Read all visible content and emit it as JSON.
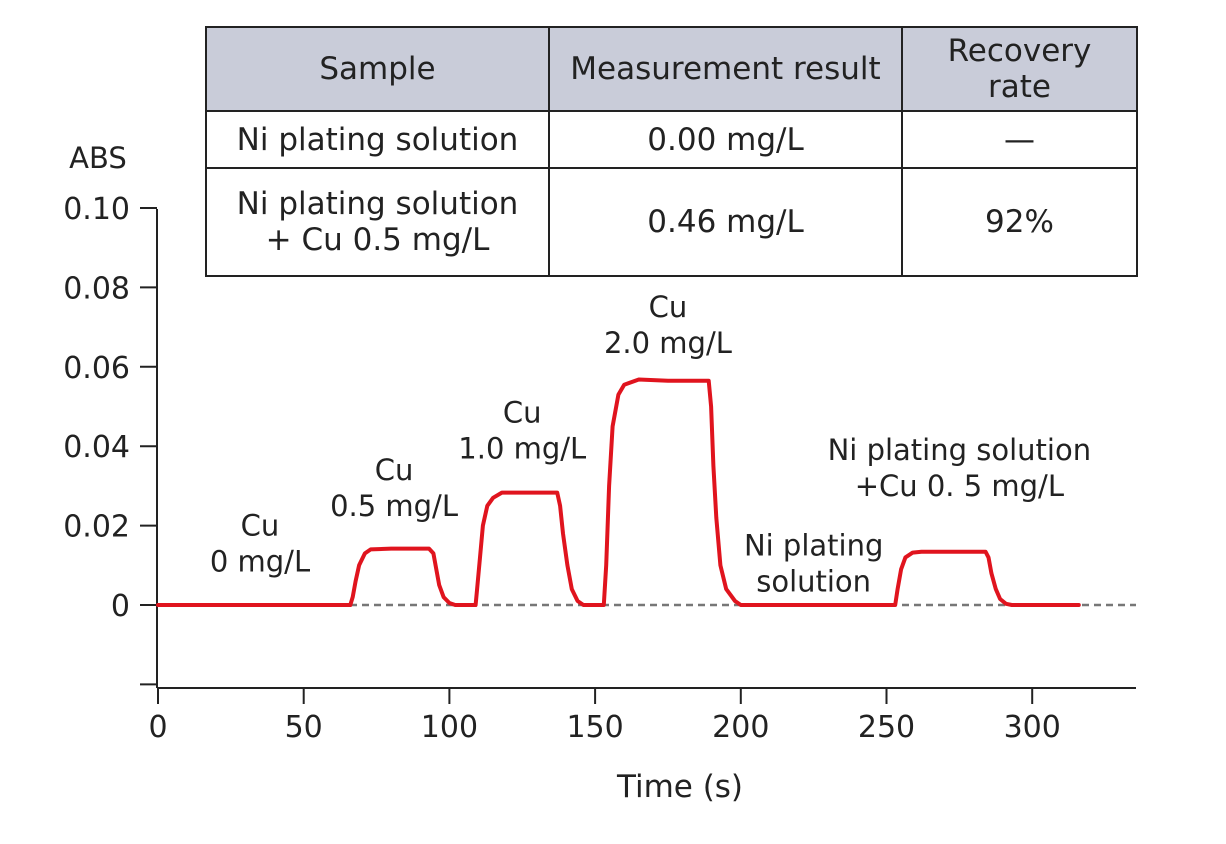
{
  "chart_data": {
    "type": "line",
    "ylabel": "ABS",
    "xlabel": "Time (s)",
    "xlim": [
      0,
      335
    ],
    "ylim": [
      -0.02,
      0.1
    ],
    "yticks": [
      0.1,
      0.08,
      0.06,
      0.04,
      0.02,
      0
    ],
    "ytick_labels": [
      "0.10",
      "0.08",
      "0.06",
      "0.04",
      "0.02",
      "0"
    ],
    "xticks": [
      0,
      50,
      100,
      150,
      200,
      250,
      300
    ],
    "xtick_labels": [
      "0",
      "50",
      "100",
      "150",
      "200",
      "250",
      "300"
    ],
    "baseline": 0,
    "series_color": "#e0141e",
    "baseline_color": "#777777",
    "series": [
      {
        "x": [
          0,
          66,
          66.8,
          67.8,
          69,
          71,
          73,
          80,
          93,
          94.5,
          95.5,
          96.5,
          98,
          100,
          102,
          109,
          109.5,
          110.5,
          111.5,
          113,
          115,
          118,
          128,
          137,
          138,
          139,
          140.5,
          142,
          144,
          146,
          153,
          153.8,
          154.8,
          156,
          158,
          160,
          165,
          175,
          189,
          189.8,
          190.6,
          191.6,
          193,
          195,
          198,
          200,
          253,
          253.8,
          255,
          256.5,
          259,
          262,
          270,
          284,
          285,
          286,
          287.5,
          289,
          291,
          293,
          316
        ],
        "y": [
          0,
          0,
          0.002,
          0.006,
          0.01,
          0.013,
          0.014,
          0.0142,
          0.0142,
          0.013,
          0.009,
          0.005,
          0.002,
          0.0005,
          0,
          0,
          0.004,
          0.012,
          0.02,
          0.025,
          0.027,
          0.0283,
          0.0283,
          0.0283,
          0.025,
          0.018,
          0.01,
          0.004,
          0.001,
          0,
          0,
          0.01,
          0.03,
          0.045,
          0.053,
          0.0555,
          0.0568,
          0.0565,
          0.0565,
          0.05,
          0.035,
          0.022,
          0.01,
          0.004,
          0.001,
          0,
          0,
          0.004,
          0.009,
          0.012,
          0.0132,
          0.0134,
          0.0134,
          0.0134,
          0.012,
          0.008,
          0.004,
          0.0015,
          0.0003,
          0,
          0
        ]
      }
    ],
    "annotations": [
      {
        "lines": [
          "Cu",
          "0 mg/L"
        ],
        "x": 35,
        "y": 0.0175
      },
      {
        "lines": [
          "Cu",
          "0.5 mg/L"
        ],
        "x": 81,
        "y": 0.0315
      },
      {
        "lines": [
          "Cu",
          "1.0 mg/L"
        ],
        "x": 125,
        "y": 0.046
      },
      {
        "lines": [
          "Cu",
          "2.0 mg/L"
        ],
        "x": 175,
        "y": 0.0725
      },
      {
        "lines": [
          "Ni plating",
          "solution"
        ],
        "x": 225,
        "y": 0.0125
      },
      {
        "lines": [
          "Ni plating solution",
          "+Cu 0. 5 mg/L"
        ],
        "x": 275,
        "y": 0.0365
      }
    ]
  },
  "table": {
    "headers": [
      "Sample",
      "Measurement result",
      "Recovery\nrate"
    ],
    "rows": [
      [
        "Ni plating solution",
        "0.00 mg/L",
        "—"
      ],
      [
        "Ni plating solution\n+ Cu 0.5 mg/L",
        "0.46 mg/L",
        "92%"
      ]
    ]
  }
}
